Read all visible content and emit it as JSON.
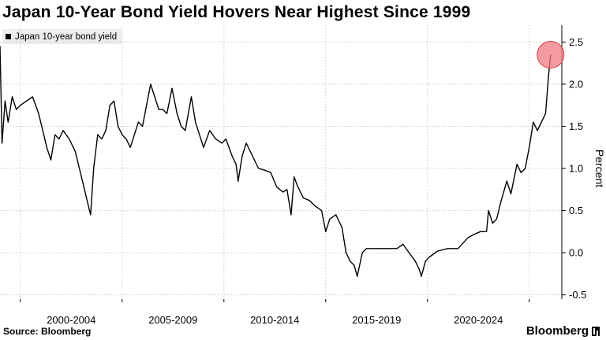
{
  "title": "Japan 10-Year Bond Yield Hovers Near Highest Since 1999",
  "source": "Source: Bloomberg",
  "brand": "Bloomberg",
  "chart_data": {
    "type": "line",
    "series": [
      {
        "name": "Japan 10-year bond yield",
        "color": "#000000",
        "points": [
          [
            1999.0,
            2.45
          ],
          [
            1999.1,
            1.3
          ],
          [
            1999.25,
            1.8
          ],
          [
            1999.4,
            1.55
          ],
          [
            1999.6,
            1.85
          ],
          [
            1999.8,
            1.7
          ],
          [
            2000.0,
            1.75
          ],
          [
            2000.3,
            1.8
          ],
          [
            2000.6,
            1.85
          ],
          [
            2000.9,
            1.65
          ],
          [
            2001.1,
            1.45
          ],
          [
            2001.3,
            1.25
          ],
          [
            2001.5,
            1.1
          ],
          [
            2001.7,
            1.4
          ],
          [
            2001.9,
            1.35
          ],
          [
            2002.1,
            1.45
          ],
          [
            2002.4,
            1.35
          ],
          [
            2002.7,
            1.2
          ],
          [
            2002.9,
            1.0
          ],
          [
            2003.1,
            0.8
          ],
          [
            2003.3,
            0.6
          ],
          [
            2003.45,
            0.45
          ],
          [
            2003.6,
            1.0
          ],
          [
            2003.8,
            1.4
          ],
          [
            2004.0,
            1.35
          ],
          [
            2004.2,
            1.45
          ],
          [
            2004.4,
            1.75
          ],
          [
            2004.6,
            1.8
          ],
          [
            2004.8,
            1.5
          ],
          [
            2005.0,
            1.4
          ],
          [
            2005.2,
            1.35
          ],
          [
            2005.4,
            1.25
          ],
          [
            2005.6,
            1.4
          ],
          [
            2005.8,
            1.55
          ],
          [
            2006.0,
            1.5
          ],
          [
            2006.2,
            1.75
          ],
          [
            2006.4,
            2.0
          ],
          [
            2006.6,
            1.85
          ],
          [
            2006.8,
            1.7
          ],
          [
            2007.0,
            1.7
          ],
          [
            2007.2,
            1.65
          ],
          [
            2007.45,
            1.95
          ],
          [
            2007.7,
            1.65
          ],
          [
            2007.9,
            1.5
          ],
          [
            2008.1,
            1.45
          ],
          [
            2008.4,
            1.85
          ],
          [
            2008.6,
            1.55
          ],
          [
            2008.8,
            1.4
          ],
          [
            2009.0,
            1.25
          ],
          [
            2009.3,
            1.45
          ],
          [
            2009.6,
            1.35
          ],
          [
            2009.9,
            1.3
          ],
          [
            2010.1,
            1.35
          ],
          [
            2010.4,
            1.15
          ],
          [
            2010.6,
            1.05
          ],
          [
            2010.7,
            0.85
          ],
          [
            2010.9,
            1.15
          ],
          [
            2011.1,
            1.3
          ],
          [
            2011.4,
            1.15
          ],
          [
            2011.7,
            1.0
          ],
          [
            2012.0,
            0.98
          ],
          [
            2012.3,
            0.95
          ],
          [
            2012.6,
            0.78
          ],
          [
            2012.9,
            0.72
          ],
          [
            2013.1,
            0.75
          ],
          [
            2013.3,
            0.45
          ],
          [
            2013.45,
            0.9
          ],
          [
            2013.6,
            0.8
          ],
          [
            2013.9,
            0.65
          ],
          [
            2014.2,
            0.62
          ],
          [
            2014.5,
            0.55
          ],
          [
            2014.8,
            0.5
          ],
          [
            2015.0,
            0.25
          ],
          [
            2015.2,
            0.4
          ],
          [
            2015.5,
            0.45
          ],
          [
            2015.8,
            0.3
          ],
          [
            2016.0,
            0.0
          ],
          [
            2016.2,
            -0.1
          ],
          [
            2016.4,
            -0.15
          ],
          [
            2016.55,
            -0.28
          ],
          [
            2016.8,
            0.0
          ],
          [
            2017.0,
            0.05
          ],
          [
            2017.5,
            0.05
          ],
          [
            2018.0,
            0.05
          ],
          [
            2018.5,
            0.05
          ],
          [
            2018.8,
            0.1
          ],
          [
            2019.1,
            0.0
          ],
          [
            2019.4,
            -0.1
          ],
          [
            2019.6,
            -0.2
          ],
          [
            2019.7,
            -0.28
          ],
          [
            2019.9,
            -0.1
          ],
          [
            2020.1,
            -0.05
          ],
          [
            2020.5,
            0.02
          ],
          [
            2021.0,
            0.05
          ],
          [
            2021.5,
            0.05
          ],
          [
            2022.0,
            0.18
          ],
          [
            2022.3,
            0.22
          ],
          [
            2022.6,
            0.25
          ],
          [
            2022.9,
            0.25
          ],
          [
            2023.0,
            0.5
          ],
          [
            2023.2,
            0.35
          ],
          [
            2023.4,
            0.4
          ],
          [
            2023.6,
            0.6
          ],
          [
            2023.9,
            0.85
          ],
          [
            2024.1,
            0.7
          ],
          [
            2024.4,
            1.05
          ],
          [
            2024.6,
            0.95
          ],
          [
            2024.8,
            1.0
          ],
          [
            2025.0,
            1.25
          ],
          [
            2025.2,
            1.55
          ],
          [
            2025.4,
            1.45
          ],
          [
            2025.6,
            1.55
          ],
          [
            2025.8,
            1.65
          ],
          [
            2025.95,
            2.1
          ],
          [
            2026.05,
            2.35
          ]
        ]
      }
    ],
    "highlight": {
      "x": 2026.05,
      "y": 2.35,
      "color": "#f07a82"
    },
    "x_categories": [
      "2000-2004",
      "2005-2009",
      "2010-2014",
      "2015-2019",
      "2020-2024"
    ],
    "x_ticks": [
      2000,
      2005,
      2010,
      2015,
      2020,
      2025
    ],
    "xlim": [
      1999,
      2026.6
    ],
    "y_ticks": [
      -0.5,
      0.0,
      0.5,
      1.0,
      1.5,
      2.0,
      2.5
    ],
    "y_tick_labels": [
      "-0.5",
      "0.0",
      "0.5",
      "1.0",
      "1.5",
      "2.0",
      "2.5"
    ],
    "ylim": [
      -0.55,
      2.7
    ],
    "ylabel": "Percent",
    "legend_position": "top-left",
    "grid": true
  }
}
